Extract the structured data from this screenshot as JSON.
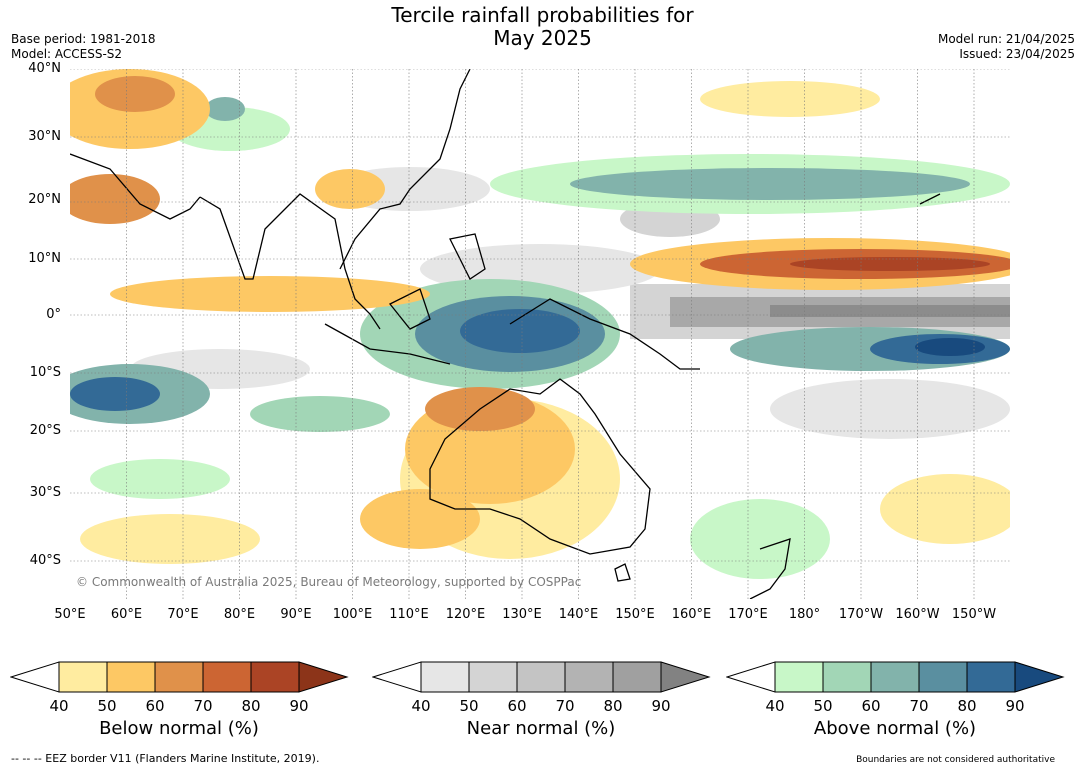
{
  "title_line1": "Tercile rainfall probabilities for",
  "title_line2": "May 2025",
  "base_period": "Base period: 1981-2018",
  "model": "Model: ACCESS-S2",
  "model_run": "Model run: 21/04/2025",
  "issued": "Issued: 23/04/2025",
  "copyright": "© Commonwealth of Australia 2025, Bureau of Meteorology, supported by COSPPac",
  "lat_labels": [
    "40°N",
    "30°N",
    "20°N",
    "10°N",
    "0°",
    "10°S",
    "20°S",
    "30°S",
    "40°S"
  ],
  "lon_labels": [
    "50°E",
    "60°E",
    "70°E",
    "80°E",
    "90°E",
    "100°E",
    "110°E",
    "120°E",
    "130°E",
    "140°E",
    "150°E",
    "160°E",
    "170°E",
    "180°",
    "170°W",
    "160°W",
    "150°W"
  ],
  "colorbars": [
    {
      "label": "Below normal (%)",
      "ticks": [
        "40",
        "50",
        "60",
        "70",
        "80",
        "90"
      ],
      "colors": [
        "#ffeca0",
        "#fdc864",
        "#e0914a",
        "#cc6533",
        "#ab4425"
      ],
      "over": "#8c3419"
    },
    {
      "label": "Near normal (%)",
      "ticks": [
        "40",
        "50",
        "60",
        "70",
        "80",
        "90"
      ],
      "colors": [
        "#e6e6e6",
        "#d4d4d4",
        "#c4c4c4",
        "#b3b3b3",
        "#a0a0a0"
      ],
      "over": "#828282"
    },
    {
      "label": "Above normal (%)",
      "ticks": [
        "40",
        "50",
        "60",
        "70",
        "80",
        "90"
      ],
      "colors": [
        "#c8f7c8",
        "#a2d6b6",
        "#82b3ab",
        "#5a8fa0",
        "#336a96"
      ],
      "over": "#184a7e"
    }
  ],
  "footer_left": "--  --  -- EEZ border V11 (Flanders Marine Institute, 2019).",
  "footer_right": "Boundaries are not considered authoritative"
}
